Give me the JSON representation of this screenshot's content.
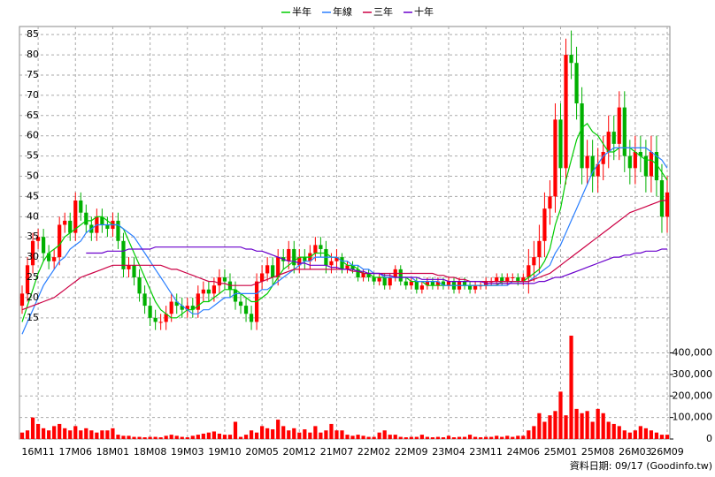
{
  "chart_data": {
    "type": "candlestick",
    "categories": [
      null,
      null,
      null,
      "16M11",
      null,
      null,
      null,
      null,
      null,
      null,
      "17M06",
      null,
      null,
      null,
      null,
      null,
      null,
      "18M01",
      null,
      null,
      null,
      null,
      null,
      null,
      "18M08",
      null,
      null,
      null,
      null,
      null,
      null,
      "19M03",
      null,
      null,
      null,
      null,
      null,
      null,
      "19M10",
      null,
      null,
      null,
      null,
      null,
      null,
      "20M05",
      null,
      null,
      null,
      null,
      null,
      null,
      "20M12",
      null,
      null,
      null,
      null,
      null,
      null,
      "21M07",
      null,
      null,
      null,
      null,
      null,
      null,
      "22M02",
      null,
      null,
      null,
      null,
      null,
      null,
      "22M09",
      null,
      null,
      null,
      null,
      null,
      null,
      "23M04",
      null,
      null,
      null,
      null,
      null,
      null,
      "23M11",
      null,
      null,
      null,
      null,
      null,
      null,
      "24M06",
      null,
      null,
      null,
      null,
      null,
      null,
      "25M01",
      null,
      null,
      null,
      null,
      null,
      null,
      "25M08",
      null,
      null,
      null,
      null,
      null,
      null,
      "26M03",
      null,
      null,
      null,
      null,
      null,
      "26M09"
    ],
    "open": [
      18,
      21,
      28,
      34,
      35,
      31,
      29,
      30,
      38,
      39,
      36,
      44,
      41,
      38,
      36,
      40,
      38,
      37,
      39,
      34,
      27,
      28,
      25,
      21,
      18,
      15,
      14,
      14,
      16,
      19,
      18,
      17,
      18,
      17,
      21,
      22,
      21,
      23,
      25,
      24,
      22,
      19,
      18,
      16,
      14,
      24,
      26,
      28,
      25,
      30,
      29,
      32,
      28,
      30,
      29,
      31,
      33,
      32,
      28,
      29,
      30,
      27,
      28,
      27,
      25,
      26,
      25,
      24,
      25,
      23,
      25,
      27,
      24,
      23,
      24,
      22,
      23,
      24,
      23,
      24,
      23,
      24,
      22,
      24,
      23,
      22,
      23,
      23,
      24,
      24,
      25,
      24,
      25,
      25,
      24,
      25,
      28,
      30,
      34,
      42,
      45,
      64,
      52,
      80,
      78,
      68,
      52,
      55,
      50,
      53,
      56,
      61,
      58,
      67,
      55,
      52,
      56,
      55,
      50,
      56,
      49,
      40
    ],
    "high": [
      23,
      30,
      36,
      37,
      37,
      33,
      32,
      40,
      41,
      41,
      46,
      46,
      43,
      40,
      42,
      42,
      40,
      41,
      41,
      36,
      30,
      30,
      27,
      23,
      20,
      17,
      16,
      18,
      21,
      21,
      20,
      20,
      20,
      23,
      24,
      24,
      25,
      27,
      27,
      26,
      24,
      21,
      20,
      18,
      26,
      28,
      30,
      30,
      32,
      32,
      34,
      34,
      32,
      32,
      33,
      35,
      35,
      34,
      31,
      32,
      31,
      29,
      29,
      28,
      27,
      27,
      26,
      26,
      26,
      26,
      28,
      28,
      25,
      25,
      25,
      24,
      25,
      25,
      25,
      25,
      25,
      25,
      25,
      25,
      24,
      24,
      24,
      25,
      25,
      26,
      26,
      26,
      26,
      26,
      26,
      32,
      34,
      38,
      46,
      49,
      68,
      68,
      84,
      86,
      82,
      72,
      59,
      59,
      57,
      60,
      65,
      65,
      71,
      71,
      59,
      60,
      60,
      59,
      60,
      60,
      53,
      50
    ],
    "low": [
      16,
      19,
      26,
      32,
      29,
      27,
      27,
      28,
      36,
      34,
      34,
      39,
      36,
      34,
      34,
      36,
      35,
      35,
      32,
      25,
      25,
      23,
      19,
      16,
      13,
      12,
      12,
      12,
      14,
      16,
      15,
      15,
      15,
      15,
      19,
      19,
      19,
      21,
      22,
      20,
      17,
      16,
      14,
      12,
      12,
      22,
      24,
      23,
      23,
      27,
      27,
      26,
      26,
      27,
      27,
      29,
      30,
      26,
      26,
      27,
      26,
      26,
      26,
      24,
      24,
      24,
      23,
      23,
      22,
      22,
      24,
      23,
      22,
      22,
      21,
      21,
      22,
      22,
      22,
      22,
      22,
      21,
      21,
      22,
      21,
      21,
      22,
      22,
      23,
      23,
      23,
      23,
      24,
      23,
      23,
      21,
      24,
      26,
      30,
      38,
      41,
      48,
      48,
      74,
      64,
      48,
      48,
      46,
      46,
      49,
      52,
      54,
      54,
      51,
      48,
      48,
      51,
      46,
      46,
      45,
      36,
      36
    ],
    "close": [
      21,
      28,
      34,
      35,
      31,
      29,
      30,
      38,
      39,
      36,
      44,
      41,
      38,
      36,
      40,
      38,
      37,
      39,
      34,
      27,
      28,
      25,
      21,
      18,
      15,
      14,
      14,
      16,
      19,
      18,
      17,
      18,
      17,
      21,
      22,
      21,
      23,
      25,
      24,
      22,
      19,
      18,
      16,
      14,
      24,
      26,
      28,
      25,
      30,
      29,
      32,
      28,
      30,
      29,
      31,
      33,
      32,
      28,
      29,
      30,
      27,
      28,
      27,
      25,
      26,
      25,
      24,
      25,
      23,
      25,
      27,
      24,
      23,
      24,
      22,
      23,
      24,
      23,
      24,
      23,
      24,
      22,
      24,
      23,
      22,
      23,
      23,
      24,
      24,
      25,
      24,
      25,
      25,
      24,
      25,
      28,
      30,
      34,
      42,
      45,
      64,
      52,
      80,
      78,
      68,
      52,
      55,
      50,
      53,
      56,
      61,
      58,
      67,
      55,
      52,
      56,
      55,
      50,
      56,
      49,
      40,
      46
    ],
    "up_color": "#ff0000",
    "down_color": "#00b000",
    "series": [
      {
        "name": "半年",
        "color": "#00cc00",
        "values": [
          14,
          18,
          22,
          26,
          29,
          31,
          32,
          33,
          35,
          36,
          37,
          38,
          39,
          39,
          40,
          40,
          39,
          38,
          38,
          37,
          34,
          31,
          28,
          25,
          22,
          19,
          17,
          16,
          15,
          15,
          16,
          17,
          17,
          18,
          19,
          19,
          20,
          21,
          22,
          22,
          22,
          21,
          20,
          19,
          19,
          20,
          21,
          23,
          25,
          27,
          28,
          29,
          30,
          30,
          30,
          31,
          31,
          31,
          30,
          30,
          29,
          28,
          28,
          27,
          26,
          26,
          25,
          25,
          25,
          25,
          25,
          25,
          25,
          24,
          24,
          24,
          23,
          23,
          23,
          23,
          23,
          23,
          23,
          23,
          23,
          23,
          23,
          23,
          23,
          23,
          24,
          24,
          24,
          24,
          24,
          25,
          26,
          27,
          29,
          32,
          38,
          42,
          49,
          54,
          59,
          62,
          63,
          61,
          60,
          58,
          56,
          56,
          57,
          57,
          57,
          56,
          55,
          54,
          54,
          53,
          51,
          49
        ]
      },
      {
        "name": "年線",
        "color": "#2a7fff",
        "values": [
          11,
          14,
          17,
          20,
          23,
          25,
          27,
          29,
          30,
          32,
          33,
          34,
          36,
          37,
          38,
          38,
          38,
          38,
          38,
          37,
          36,
          35,
          33,
          31,
          29,
          27,
          25,
          23,
          21,
          19,
          18,
          17,
          16,
          16,
          17,
          17,
          18,
          19,
          20,
          20,
          21,
          21,
          21,
          21,
          21,
          22,
          22,
          23,
          24,
          25,
          26,
          27,
          28,
          29,
          29,
          30,
          30,
          30,
          30,
          30,
          29,
          29,
          28,
          28,
          27,
          27,
          26,
          26,
          25,
          25,
          25,
          25,
          25,
          25,
          24,
          24,
          24,
          24,
          24,
          23,
          23,
          23,
          23,
          23,
          23,
          23,
          23,
          23,
          23,
          23,
          23,
          23,
          24,
          24,
          24,
          24,
          25,
          26,
          27,
          28,
          31,
          33,
          36,
          39,
          42,
          45,
          48,
          51,
          53,
          55,
          56,
          57,
          57,
          57,
          57,
          57,
          57,
          57,
          56,
          55,
          54,
          52
        ]
      },
      {
        "name": "三年",
        "color": "#cc0044",
        "values": [
          17,
          17.5,
          18,
          18.5,
          19,
          19.5,
          20,
          21,
          22,
          23,
          24,
          25,
          25.5,
          26,
          26.5,
          27,
          27.5,
          28,
          28,
          28,
          28,
          28,
          28,
          28,
          28,
          28,
          28,
          27.5,
          27,
          27,
          26.5,
          26,
          25.5,
          25,
          24.5,
          24,
          24,
          23.5,
          23.5,
          23,
          23,
          23,
          23,
          23,
          23.5,
          24,
          24.5,
          25,
          25.5,
          26,
          26.5,
          27,
          27,
          27,
          27,
          27,
          27,
          27,
          27,
          27,
          27,
          27,
          26.5,
          26.5,
          26,
          26,
          26,
          26,
          26,
          26,
          26,
          26,
          26,
          26,
          26,
          26,
          26,
          26,
          25.5,
          25.5,
          25,
          25,
          24.5,
          24.5,
          24,
          24,
          24,
          24,
          24,
          24,
          24,
          24,
          24,
          24,
          24,
          24,
          24.5,
          25,
          25.5,
          26,
          27,
          28,
          29,
          30,
          31,
          32,
          33,
          34,
          35,
          36,
          37,
          38,
          39,
          40,
          41,
          41.5,
          42,
          42.5,
          43,
          43.5,
          44,
          44
        ]
      },
      {
        "name": "十年",
        "color": "#6a00cc",
        "values": [
          null,
          null,
          null,
          null,
          null,
          null,
          null,
          null,
          null,
          null,
          null,
          null,
          31,
          31,
          31,
          31,
          31.5,
          31.5,
          31.5,
          31.5,
          32,
          32,
          32,
          32,
          32,
          32.5,
          32.5,
          32.5,
          32.5,
          32.5,
          32.5,
          32.5,
          32.5,
          32.5,
          32.5,
          32.5,
          32.5,
          32.5,
          32.5,
          32.5,
          32.5,
          32.5,
          32,
          32,
          31.5,
          31.5,
          31,
          30.5,
          30,
          29.5,
          29,
          29,
          28.5,
          28.5,
          28,
          28,
          28,
          28,
          27.5,
          27.5,
          27,
          27,
          27,
          26.5,
          26.5,
          26,
          26,
          26,
          25.5,
          25.5,
          25,
          25,
          25,
          25,
          25,
          24.5,
          24.5,
          24.5,
          24.5,
          24.5,
          24,
          24,
          24,
          24,
          24,
          24,
          24,
          23.5,
          23.5,
          23.5,
          23.5,
          23.5,
          23.5,
          23.5,
          23.5,
          23.5,
          23.5,
          24,
          24,
          24.5,
          25,
          25,
          25.5,
          26,
          26.5,
          27,
          27.5,
          28,
          28.5,
          29,
          29.5,
          30,
          30,
          30.5,
          30.5,
          31,
          31,
          31.5,
          31.5,
          31.5,
          32,
          32
        ]
      }
    ],
    "volume": {
      "color": "#ff0000",
      "values": [
        30000,
        40000,
        100000,
        70000,
        50000,
        40000,
        60000,
        70000,
        50000,
        40000,
        60000,
        40000,
        50000,
        40000,
        30000,
        40000,
        40000,
        50000,
        20000,
        15000,
        15000,
        10000,
        10000,
        8000,
        10000,
        10000,
        8000,
        15000,
        20000,
        15000,
        10000,
        8000,
        15000,
        20000,
        25000,
        30000,
        35000,
        25000,
        20000,
        20000,
        80000,
        10000,
        20000,
        40000,
        30000,
        60000,
        50000,
        45000,
        90000,
        60000,
        40000,
        50000,
        30000,
        45000,
        30000,
        60000,
        30000,
        40000,
        70000,
        40000,
        40000,
        20000,
        15000,
        20000,
        15000,
        10000,
        10000,
        30000,
        40000,
        20000,
        20000,
        10000,
        8000,
        10000,
        10000,
        20000,
        10000,
        8000,
        10000,
        8000,
        15000,
        8000,
        10000,
        10000,
        20000,
        10000,
        8000,
        10000,
        10000,
        15000,
        10000,
        15000,
        10000,
        15000,
        15000,
        40000,
        60000,
        120000,
        80000,
        110000,
        130000,
        220000,
        110000,
        480000,
        140000,
        120000,
        130000,
        80000,
        140000,
        120000,
        80000,
        70000,
        60000,
        40000,
        30000,
        40000,
        60000,
        50000,
        40000,
        30000,
        20000,
        20000
      ]
    },
    "ylim": [
      10.6,
      87
    ],
    "yticks": [
      15,
      20,
      25,
      30,
      35,
      40,
      45,
      50,
      55,
      60,
      65,
      70,
      75,
      80,
      85
    ],
    "y2lim": [
      0,
      480000
    ],
    "y2ticks": [
      0,
      {
        "value": 100000,
        "label": "100,000"
      },
      {
        "value": 200000,
        "label": "200,000"
      },
      {
        "value": 300000,
        "label": "300,000"
      },
      {
        "value": 400000,
        "label": "400,000"
      }
    ],
    "grid": true,
    "source": "資料日期: 09/17 (Goodinfo.tw)"
  }
}
